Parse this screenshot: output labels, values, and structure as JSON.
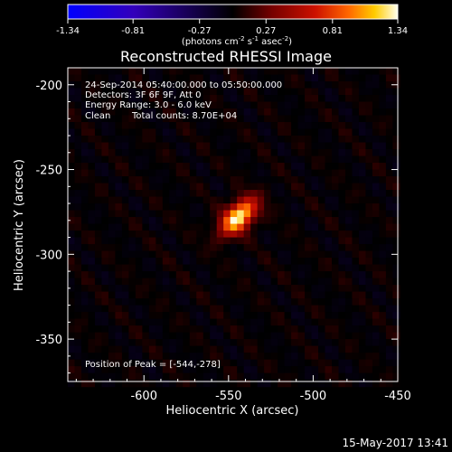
{
  "chart_data": {
    "type": "heatmap",
    "title": "Reconstructed RHESSI Image",
    "xlabel": "Heliocentric X (arcsec)",
    "ylabel": "Heliocentric Y (arcsec)",
    "xlim": [
      -645,
      -450
    ],
    "ylim": [
      -375,
      -190
    ],
    "xticks": [
      "-600",
      "-550",
      "-500",
      "-450"
    ],
    "yticks": [
      "-200",
      "-250",
      "-300",
      "-350"
    ],
    "xtick_values": [
      -600,
      -550,
      -500,
      -450
    ],
    "ytick_values": [
      -200,
      -250,
      -300,
      -350
    ],
    "colorbar": {
      "ticks": [
        "-1.34",
        "-0.81",
        "-0.27",
        "0.27",
        "0.81",
        "1.34"
      ],
      "tick_values": [
        -1.34,
        -0.81,
        -0.27,
        0.27,
        0.81,
        1.34
      ],
      "range": [
        -1.34,
        1.34
      ],
      "unit_label": "(photons cm",
      "unit_exp1": "-2",
      "unit_mid": " s",
      "unit_exp2": "-1",
      "unit_mid2": " asec",
      "unit_exp3": "-2",
      "unit_end": ")",
      "colormap": [
        "#0000ff",
        "#3300cc",
        "#000000",
        "#440000",
        "#990000",
        "#dd2200",
        "#ff7700",
        "#ffcc00",
        "#ffffdd"
      ]
    },
    "annotations": {
      "time_range": "24-Sep-2014 05:40:00.000 to 05:50:00.000",
      "detectors": "Detectors: 3F 6F 9F, Att 0",
      "energy_range": "Energy Range: 3.0 - 6.0 keV",
      "method": "Clean",
      "total_counts": "Total counts: 8.70E+04",
      "peak_position": "Position of Peak = [-544,-278]"
    },
    "source": {
      "peak_x": -544,
      "peak_y": -278,
      "peak_value": 1.34,
      "sigma_major": 9,
      "sigma_minor": 5,
      "orientation_deg": 45
    },
    "grid": false
  },
  "footer": {
    "date": "15-May-2017 13:41"
  }
}
